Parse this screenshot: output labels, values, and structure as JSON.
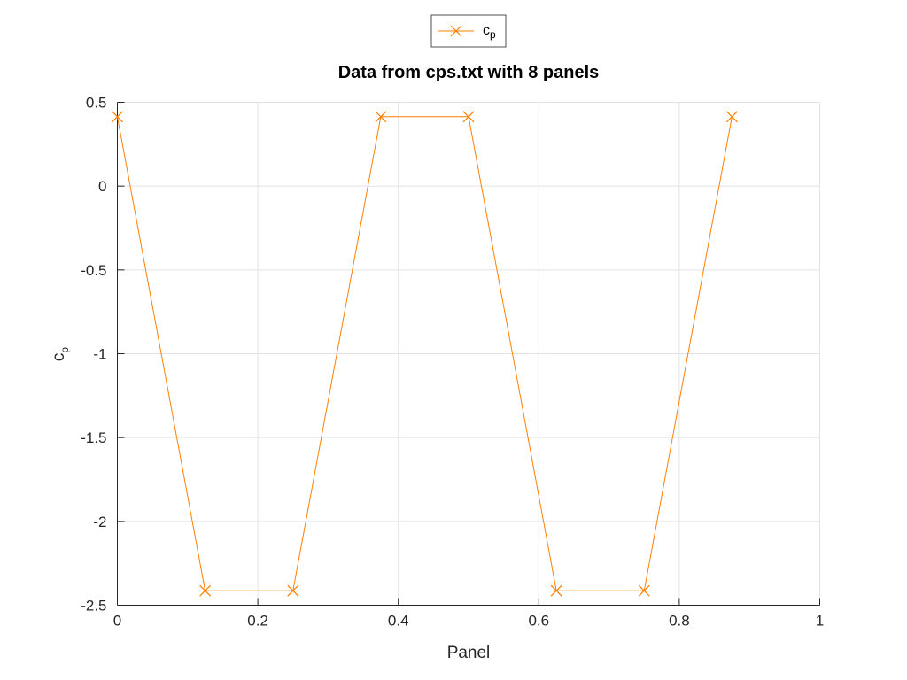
{
  "chart_data": {
    "type": "line",
    "title": "Data from cps.txt with 8 panels",
    "xlabel": "Panel",
    "ylabel": {
      "base": "c",
      "sub": "p"
    },
    "xlim": [
      0,
      1
    ],
    "ylim": [
      -2.5,
      0.5
    ],
    "xticks": [
      "0",
      "0.2",
      "0.4",
      "0.6",
      "0.8",
      "1"
    ],
    "yticks": [
      "0.5",
      "0",
      "-0.5",
      "-1",
      "-1.5",
      "-2",
      "-2.5"
    ],
    "grid": true,
    "legend": {
      "placement": "top-center-outside",
      "entries": [
        {
          "base": "c",
          "sub": "p"
        }
      ]
    },
    "series": [
      {
        "name": "cp",
        "color": "#ff7f00",
        "marker": "x",
        "x": [
          0,
          0.125,
          0.25,
          0.375,
          0.5,
          0.625,
          0.75,
          0.875
        ],
        "values": [
          0.414,
          -2.414,
          -2.414,
          0.414,
          0.414,
          -2.414,
          -2.414,
          0.414
        ]
      }
    ]
  }
}
